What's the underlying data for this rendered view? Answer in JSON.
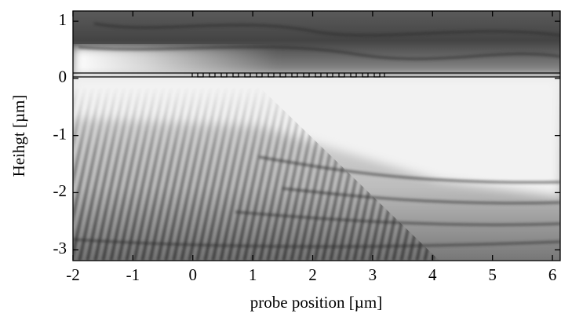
{
  "chart_data": {
    "type": "heatmap",
    "x_label": "probe position  [µm]",
    "y_label": "Heihgt  [µm]",
    "xlim": [
      -2,
      6.13
    ],
    "ylim": [
      -3.19,
      1.18
    ],
    "xticks": [
      -2,
      -1,
      0,
      1,
      2,
      3,
      4,
      5,
      6
    ],
    "yticks": [
      -3,
      -2,
      -1,
      0,
      1
    ]
  }
}
